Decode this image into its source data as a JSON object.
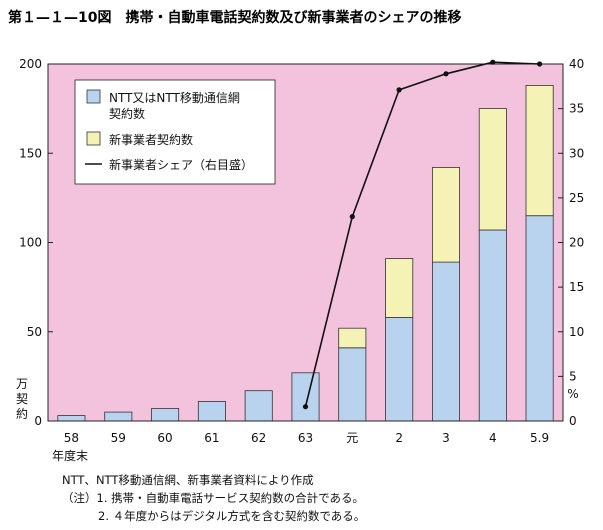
{
  "title": "第１—１—10図　携帯・自動車電話契約数及び新事業者のシェアの推移",
  "chart_data": {
    "type": "bar",
    "stacked": true,
    "categories": [
      "58",
      "59",
      "60",
      "61",
      "62",
      "63",
      "元",
      "2",
      "3",
      "4",
      "5.9"
    ],
    "x_axis_suffix": "年度末",
    "left_axis": {
      "unit_label": "万契約",
      "ylim": [
        0,
        200
      ],
      "ticks": [
        0,
        50,
        100,
        150,
        200
      ]
    },
    "right_axis": {
      "unit_label": "%",
      "ylim": [
        0,
        40
      ],
      "ticks": [
        0,
        5,
        10,
        15,
        20,
        25,
        30,
        35,
        40
      ]
    },
    "series": [
      {
        "name": "NTT又はNTT移動通信網契約数",
        "kind": "bar",
        "axis": "left",
        "color": "#b9d3ef",
        "values": [
          3,
          5,
          7,
          11,
          17,
          27,
          41,
          58,
          89,
          107,
          115
        ]
      },
      {
        "name": "新事業者契約数",
        "kind": "bar",
        "axis": "left",
        "color": "#f4f2b4",
        "values": [
          0,
          0,
          0,
          0,
          0,
          0,
          11,
          33,
          53,
          68,
          73
        ]
      },
      {
        "name": "新事業者シェア（右目盛）",
        "kind": "line",
        "axis": "right",
        "color": "#111111",
        "values": [
          null,
          null,
          null,
          null,
          null,
          1.6,
          22.9,
          37.1,
          38.9,
          40.2,
          40.0
        ]
      }
    ],
    "legend_position": "top-left",
    "plot_background": "#f3c3de",
    "bar_border": "#333333"
  },
  "notes": [
    "NTT、NTT移動通信網、新事業者資料により作成",
    "（注）1. 携帯・自動車電話サービス契約数の合計である。",
    "2. ４年度からはデジタル方式を含む契約数である。"
  ]
}
